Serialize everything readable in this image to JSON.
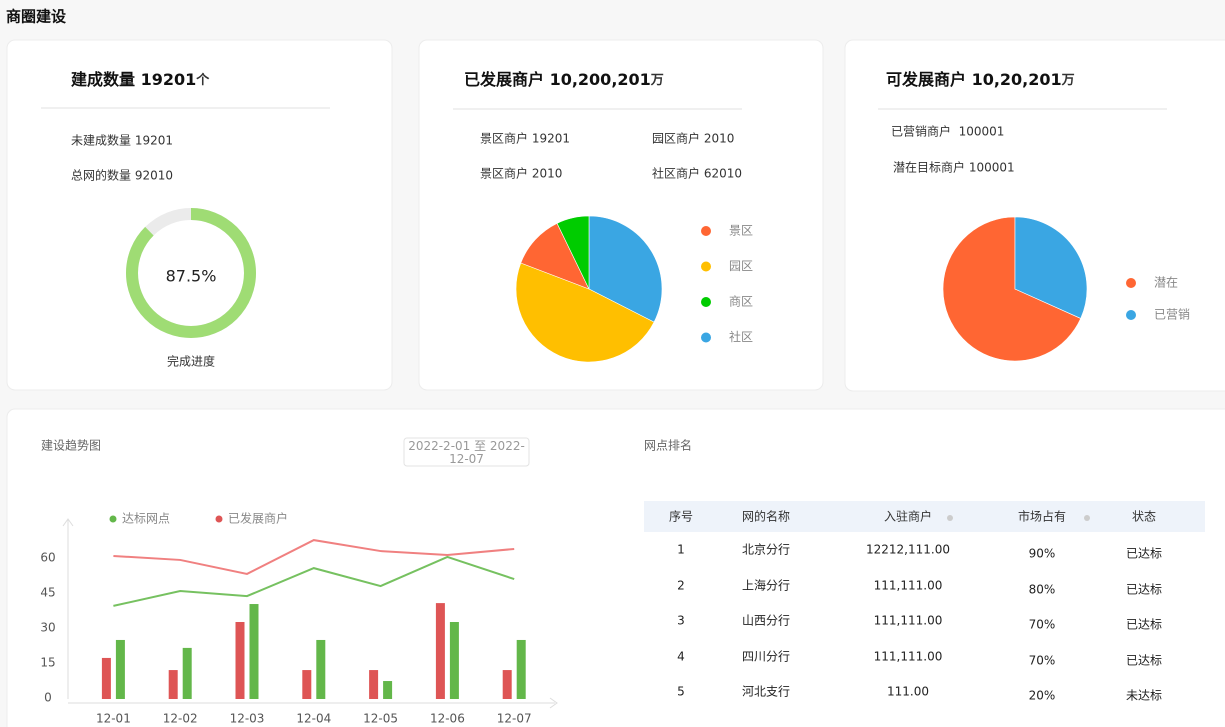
{
  "header": {
    "title": "商圈建设"
  },
  "card1": {
    "title": "建成数量 19201",
    "unit": "个",
    "stats": [
      "未建成数量 19201",
      "总网的数量 92010"
    ],
    "progress": {
      "value": 87.5,
      "label": "87.5%"
    },
    "caption": "完成进度"
  },
  "card2": {
    "title": "已发展商户 10,200,201",
    "unit": "万",
    "stats": [
      "景区商户 19201",
      "园区商户 2010",
      "景区商户 2010",
      "社区商户 62010"
    ]
  },
  "card3": {
    "title": "可发展商户 10,20,201",
    "unit": "万",
    "stats": [
      "已营销商户  100001",
      "潜在目标商户 100001"
    ]
  },
  "trend_filter": {
    "date_range": "2022-2-01 至 2022-12-07"
  },
  "chart_data": [
    {
      "type": "pie",
      "categories": [
        "景区",
        "园区",
        "商区",
        "社区"
      ],
      "values": [
        12,
        48.3,
        7.2,
        32.5
      ],
      "colors": [
        "#ff6633",
        "#ffbf00",
        "#00cc00",
        "#3aa6e3"
      ]
    },
    {
      "type": "pie",
      "categories": [
        "潜在",
        "已营销"
      ],
      "values": [
        68.3,
        31.7
      ],
      "colors": [
        "#ff6633",
        "#3aa6e3"
      ]
    },
    {
      "type": "bar",
      "title": "建设趋势图",
      "categories": [
        "12-01",
        "12-02",
        "12-03",
        "12-04",
        "12-05",
        "12-06",
        "12-07"
      ],
      "series": [
        {
          "name": "达标网点",
          "type": "bar",
          "color": "#63b74a",
          "values": [
            25.3,
            21.9,
            40.7,
            25.3,
            7.7,
            33,
            25.3
          ]
        },
        {
          "name": "已发展商户",
          "type": "bar",
          "color": "#de5555",
          "values": [
            17.6,
            12.4,
            33,
            12.4,
            12.4,
            41.1,
            12.4
          ]
        },
        {
          "name": "达标网点",
          "type": "line",
          "color": "#76c160",
          "values": [
            39.9,
            46.3,
            44.1,
            56.1,
            48.4,
            60.9,
            51.4
          ]
        },
        {
          "name": "已发展商户",
          "type": "line",
          "color": "#f08080",
          "values": [
            61.3,
            59.6,
            53.6,
            68.1,
            63.4,
            61.7,
            64.3
          ]
        }
      ],
      "ylim": [
        0,
        75
      ],
      "yticks": [
        0,
        15,
        30,
        45,
        60
      ]
    }
  ],
  "ranking": {
    "title": "网点排名",
    "columns": [
      "序号",
      "网的名称",
      "入驻商户",
      "市场占有",
      "状态"
    ],
    "rows": [
      [
        "1",
        "北京分行",
        "12212,111.00",
        "90%",
        "已达标"
      ],
      [
        "2",
        "上海分行",
        "111,111.00",
        "80%",
        "已达标"
      ],
      [
        "3",
        "山西分行",
        "111,111.00",
        "70%",
        "已达标"
      ],
      [
        "4",
        "四川分行",
        "111,111.00",
        "70%",
        "已达标"
      ],
      [
        "5",
        "河北支行",
        "111.00",
        "20%",
        "未达标"
      ]
    ]
  }
}
